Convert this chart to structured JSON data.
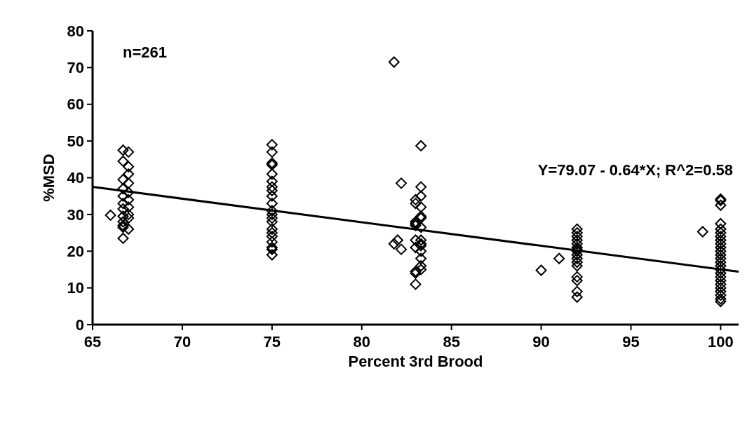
{
  "chart_data": {
    "type": "scatter",
    "xlabel": "Percent 3rd Brood",
    "ylabel": "%MSD",
    "xlim": [
      65,
      101
    ],
    "ylim": [
      0,
      80
    ],
    "xticks": [
      65,
      70,
      75,
      80,
      85,
      90,
      95,
      100
    ],
    "yticks": [
      0,
      10,
      20,
      30,
      40,
      50,
      60,
      70,
      80
    ],
    "grid": false,
    "annotations": [
      "n=261",
      "Y=79.07 - 0.64*X; R^2=0.58"
    ],
    "series": [
      {
        "color": "#000000",
        "marker": "diamond",
        "x": [
          66,
          66.7,
          66.7,
          66.7,
          66.7,
          66.7,
          66.7,
          66.7,
          66.7,
          66.7,
          66.7,
          66.7,
          66.7,
          67,
          67,
          67,
          67,
          67,
          67,
          67,
          67,
          67,
          67,
          75,
          75,
          75,
          75,
          75,
          75,
          75,
          75,
          75,
          75,
          75,
          75,
          75,
          75,
          75,
          75,
          75,
          75,
          75,
          75,
          75,
          81.8,
          81.8,
          82.2,
          82,
          82.2,
          83,
          83,
          83,
          83,
          83,
          83,
          83,
          83,
          83,
          83,
          83.3,
          83.3,
          83.3,
          83.3,
          83.3,
          83.3,
          83.3,
          83.3,
          83.3,
          83.3,
          83.3,
          83.3,
          83.3,
          83.3,
          90,
          91,
          92,
          92,
          92,
          92,
          92,
          92,
          92,
          92,
          92,
          92,
          92,
          92,
          92,
          92,
          92,
          92,
          99,
          100,
          100,
          100,
          100,
          100,
          100,
          100,
          100,
          100,
          100,
          100,
          100,
          100,
          100,
          100,
          100,
          100,
          100,
          100,
          100,
          100,
          100,
          100,
          100,
          100
        ],
        "values": [
          29.8,
          47.5,
          44.5,
          39.5,
          37,
          35,
          33,
          31.5,
          29.5,
          28,
          27,
          26.5,
          23.5,
          47,
          43,
          41,
          38.5,
          36,
          34,
          32,
          30,
          29,
          26,
          49,
          47,
          44,
          43.5,
          41,
          39,
          37.5,
          36.5,
          35,
          33,
          31,
          30,
          29,
          28,
          26,
          25,
          24,
          22.5,
          21,
          20.5,
          19,
          71.5,
          22,
          38.5,
          23,
          20.5,
          34,
          33,
          28,
          27.5,
          27,
          23,
          21,
          14.5,
          14,
          11,
          48.7,
          37.5,
          35,
          32,
          29.5,
          29,
          26.5,
          23,
          22,
          21.5,
          20,
          18,
          16,
          15,
          14.8,
          18,
          26,
          25,
          24,
          23,
          22,
          21,
          20.5,
          20,
          19,
          18,
          17,
          16,
          13,
          12,
          9,
          7.5,
          25.3,
          34.2,
          33.8,
          32.5,
          27.5,
          26,
          25,
          24,
          23,
          22,
          21,
          20,
          19,
          18,
          17,
          16,
          15,
          14,
          13,
          12,
          11,
          10,
          9,
          8,
          7,
          6.3
        ]
      },
      {
        "color": "#000000",
        "type": "line",
        "x": [
          65,
          101
        ],
        "values": [
          37.5,
          14.4
        ]
      }
    ]
  }
}
